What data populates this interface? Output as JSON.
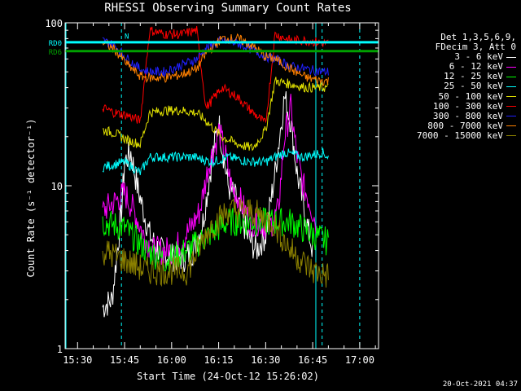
{
  "chart_data": {
    "type": "line",
    "title": "RHESSI Observing Summary Count Rates",
    "xlabel": "Start Time (24-Oct-12 15:26:02)",
    "ylabel": "Count Rate (s⁻¹ detector⁻¹)",
    "y_scale": "log",
    "ylim": [
      1,
      100
    ],
    "y_ticks": [
      1,
      10,
      100
    ],
    "y_tick_labels": [
      "1",
      "10",
      "100"
    ],
    "xlim": [
      "15:26:02",
      "17:06"
    ],
    "x_ticks": [
      "15:30",
      "15:45",
      "16:00",
      "16:15",
      "16:30",
      "16:45",
      "17:00"
    ],
    "legend_header": [
      "Det 1,3,5,6,9,",
      "FDecim 3, Att 0"
    ],
    "legend_position": "right",
    "flags": [
      {
        "label": "RD0",
        "color": "#00ffff",
        "value": 76
      },
      {
        "label": "RD6",
        "color": "#00a000",
        "value": 67
      }
    ],
    "shading": {
      "label": "N"
    },
    "series": [
      {
        "name": "3 - 6 keV",
        "color": "#ffffff",
        "x": [
          "15:38",
          "15:41",
          "15:44",
          "15:45",
          "15:47",
          "15:49",
          "15:51",
          "15:53",
          "15:55",
          "15:58",
          "16:01",
          "16:04",
          "16:07",
          "16:10",
          "16:13",
          "16:15",
          "16:16",
          "16:18",
          "16:21",
          "16:24",
          "16:27",
          "16:30",
          "16:33",
          "16:36",
          "16:38",
          "16:40",
          "16:43",
          "16:45"
        ],
        "y": [
          1.8,
          2,
          7,
          14,
          16,
          10,
          7,
          5,
          4.2,
          3.8,
          3.6,
          3.6,
          4,
          6,
          15,
          25,
          18,
          10,
          8,
          5,
          4,
          5,
          12,
          35,
          25,
          12,
          6,
          4
        ]
      },
      {
        "name": "6 - 12 keV",
        "color": "#ff00ff",
        "x": [
          "15:38",
          "15:42",
          "15:45",
          "15:48",
          "15:51",
          "15:54",
          "15:57",
          "16:00",
          "16:03",
          "16:06",
          "16:09",
          "16:12",
          "16:14",
          "16:15",
          "16:17",
          "16:19",
          "16:22",
          "16:25",
          "16:28",
          "16:31",
          "16:34",
          "16:36",
          "16:38",
          "16:40",
          "16:42",
          "16:44",
          "16:46"
        ],
        "y": [
          7,
          8,
          9,
          7,
          5,
          4,
          4,
          4,
          4.5,
          5.5,
          7,
          14,
          18,
          22,
          16,
          10,
          8,
          6,
          6,
          5.5,
          7,
          20,
          30,
          15,
          10,
          8,
          6
        ]
      },
      {
        "name": "12 - 25 keV",
        "color": "#00ff00",
        "x": [
          "15:38",
          "15:45",
          "15:52",
          "15:58",
          "16:05",
          "16:12",
          "16:18",
          "16:25",
          "16:32",
          "16:38",
          "16:45",
          "16:50"
        ],
        "y": [
          6,
          5.5,
          4,
          3.5,
          4,
          5,
          6,
          6,
          6,
          6,
          5,
          4.5
        ]
      },
      {
        "name": "25 - 50 keV",
        "color": "#00ffff",
        "x": [
          "15:38",
          "15:45",
          "15:50",
          "15:53",
          "16:00",
          "16:07",
          "16:13",
          "16:18",
          "16:25",
          "16:30",
          "16:36",
          "16:42",
          "16:48",
          "16:50"
        ],
        "y": [
          13,
          14,
          12,
          15,
          15,
          15,
          14,
          15,
          14,
          14,
          16,
          15,
          16,
          15
        ]
      },
      {
        "name": "50 - 100 keV",
        "color": "#e0e000",
        "x": [
          "15:38",
          "15:42",
          "15:46",
          "15:50",
          "15:53",
          "15:58",
          "16:03",
          "16:08",
          "16:11",
          "16:16",
          "16:21",
          "16:26",
          "16:30",
          "16:33",
          "16:38",
          "16:43",
          "16:48",
          "16:50"
        ],
        "y": [
          22,
          21,
          19,
          18,
          28,
          29,
          29,
          28,
          25,
          20,
          18,
          17,
          22,
          44,
          42,
          40,
          40,
          40
        ]
      },
      {
        "name": "100 - 300 keV",
        "color": "#ff0000",
        "x": [
          "15:38",
          "15:42",
          "15:46",
          "15:50",
          "15:53",
          "15:58",
          "16:03",
          "16:08",
          "16:11",
          "16:16",
          "16:21",
          "16:26",
          "16:30",
          "16:33",
          "16:38",
          "16:43",
          "16:48",
          "16:50"
        ],
        "y": [
          30,
          28,
          27,
          25,
          90,
          85,
          85,
          90,
          30,
          40,
          35,
          28,
          24,
          85,
          78,
          78,
          75,
          75
        ]
      },
      {
        "name": "300 - 800 keV",
        "color": "#2020ff",
        "x": [
          "15:38",
          "15:42",
          "15:46",
          "15:50",
          "15:53",
          "15:58",
          "16:03",
          "16:08",
          "16:11",
          "16:16",
          "16:21",
          "16:26",
          "16:30",
          "16:33",
          "16:38",
          "16:43",
          "16:48",
          "16:50"
        ],
        "y": [
          78,
          72,
          60,
          52,
          50,
          50,
          55,
          60,
          70,
          78,
          75,
          68,
          62,
          60,
          54,
          52,
          50,
          50
        ]
      },
      {
        "name": "800 - 7000 keV",
        "color": "#ff8000",
        "x": [
          "15:38",
          "15:42",
          "15:46",
          "15:50",
          "15:53",
          "15:58",
          "16:03",
          "16:08",
          "16:11",
          "16:16",
          "16:21",
          "16:26",
          "16:30",
          "16:33",
          "16:38",
          "16:43",
          "16:48",
          "16:50"
        ],
        "y": [
          76,
          68,
          55,
          47,
          46,
          46,
          48,
          52,
          65,
          80,
          80,
          72,
          62,
          60,
          52,
          46,
          44,
          44
        ]
      },
      {
        "name": "7000 - 15000 keV",
        "color": "#8b8000",
        "x": [
          "15:38",
          "15:45",
          "15:52",
          "15:58",
          "16:05",
          "16:12",
          "16:18",
          "16:25",
          "16:32",
          "16:38",
          "16:45",
          "16:50"
        ],
        "y": [
          4,
          3.5,
          3,
          3,
          3,
          5.5,
          7,
          7,
          6,
          4,
          3,
          2.8
        ]
      }
    ]
  },
  "footer": "20-Oct-2021 04:37"
}
